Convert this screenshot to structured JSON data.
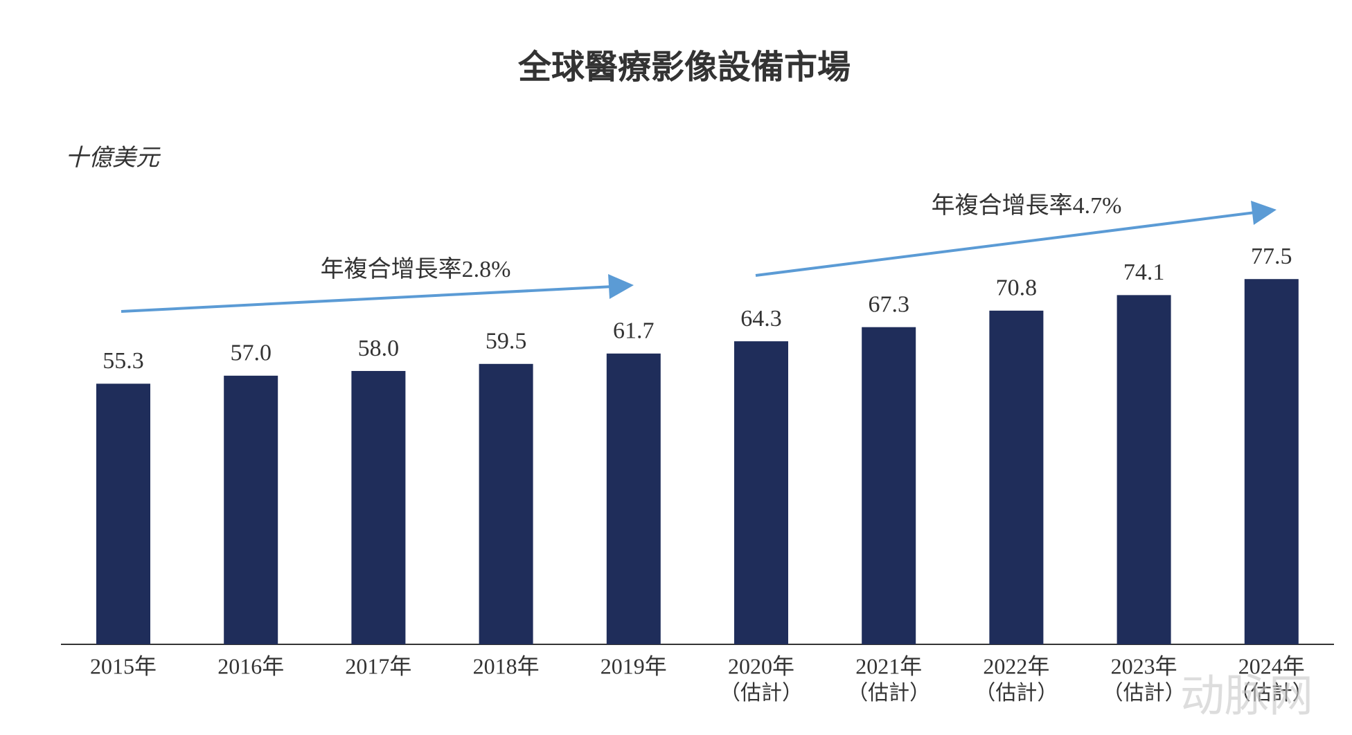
{
  "chart_data": {
    "type": "bar",
    "title": "全球醫療影像設備市場",
    "unit_label": "十億美元",
    "categories": [
      "2015年",
      "2016年",
      "2017年",
      "2018年",
      "2019年",
      "2020年",
      "2021年",
      "2022年",
      "2023年",
      "2024年"
    ],
    "category_notes": [
      null,
      null,
      null,
      null,
      null,
      "（估計）",
      "（估計）",
      "（估計）",
      "（估計）",
      "（估計）"
    ],
    "values": [
      55.3,
      57.0,
      58.0,
      59.5,
      61.7,
      64.3,
      67.3,
      70.8,
      74.1,
      77.5
    ],
    "value_labels": [
      "55.3",
      "57.0",
      "58.0",
      "59.5",
      "61.7",
      "64.3",
      "67.3",
      "70.8",
      "74.1",
      "77.5"
    ],
    "color": "#1f2d5a",
    "ylim": [
      0,
      100
    ],
    "annotations": [
      "年複合增長率2.8%",
      "年複合增長率4.7%"
    ],
    "watermark": "动脉网"
  }
}
